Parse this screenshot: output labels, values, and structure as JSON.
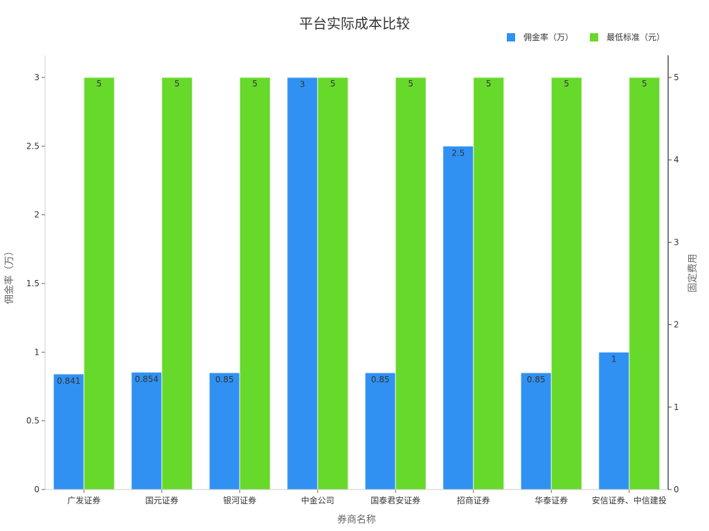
{
  "chart_data": {
    "type": "bar",
    "title": "平台实际成本比较",
    "xlabel": "券商名称",
    "ylabel": "佣金率（万）",
    "y2label": "固定费用",
    "categories": [
      "广发证券",
      "国元证券",
      "银河证券",
      "中金公司",
      "国泰君安证券",
      "招商证券",
      "华泰证券",
      "安信证券、中信建投"
    ],
    "series": [
      {
        "name": "佣金率（万）",
        "axis": "left",
        "color": "#3091f2",
        "values": [
          0.841,
          0.854,
          0.85,
          3,
          0.85,
          2.5,
          0.85,
          1
        ],
        "labels": [
          "0.841",
          "0.854",
          "0.85",
          "3",
          "0.85",
          "2.5",
          "0.85",
          "1"
        ]
      },
      {
        "name": "最低标准（元）",
        "axis": "right",
        "color": "#67d92a",
        "values": [
          5,
          5,
          5,
          5,
          5,
          5,
          5,
          5
        ],
        "labels": [
          "5",
          "5",
          "5",
          "5",
          "5",
          "5",
          "5",
          "5"
        ]
      }
    ],
    "ylim": [
      0,
      3.15
    ],
    "y2lim": [
      0,
      5.25
    ],
    "yticks": [
      "0",
      "0.5",
      "1",
      "1.5",
      "2",
      "2.5",
      "3"
    ],
    "y2ticks": [
      "0",
      "1",
      "2",
      "3",
      "4",
      "5"
    ],
    "grid": false,
    "legend_position": "top-right"
  }
}
